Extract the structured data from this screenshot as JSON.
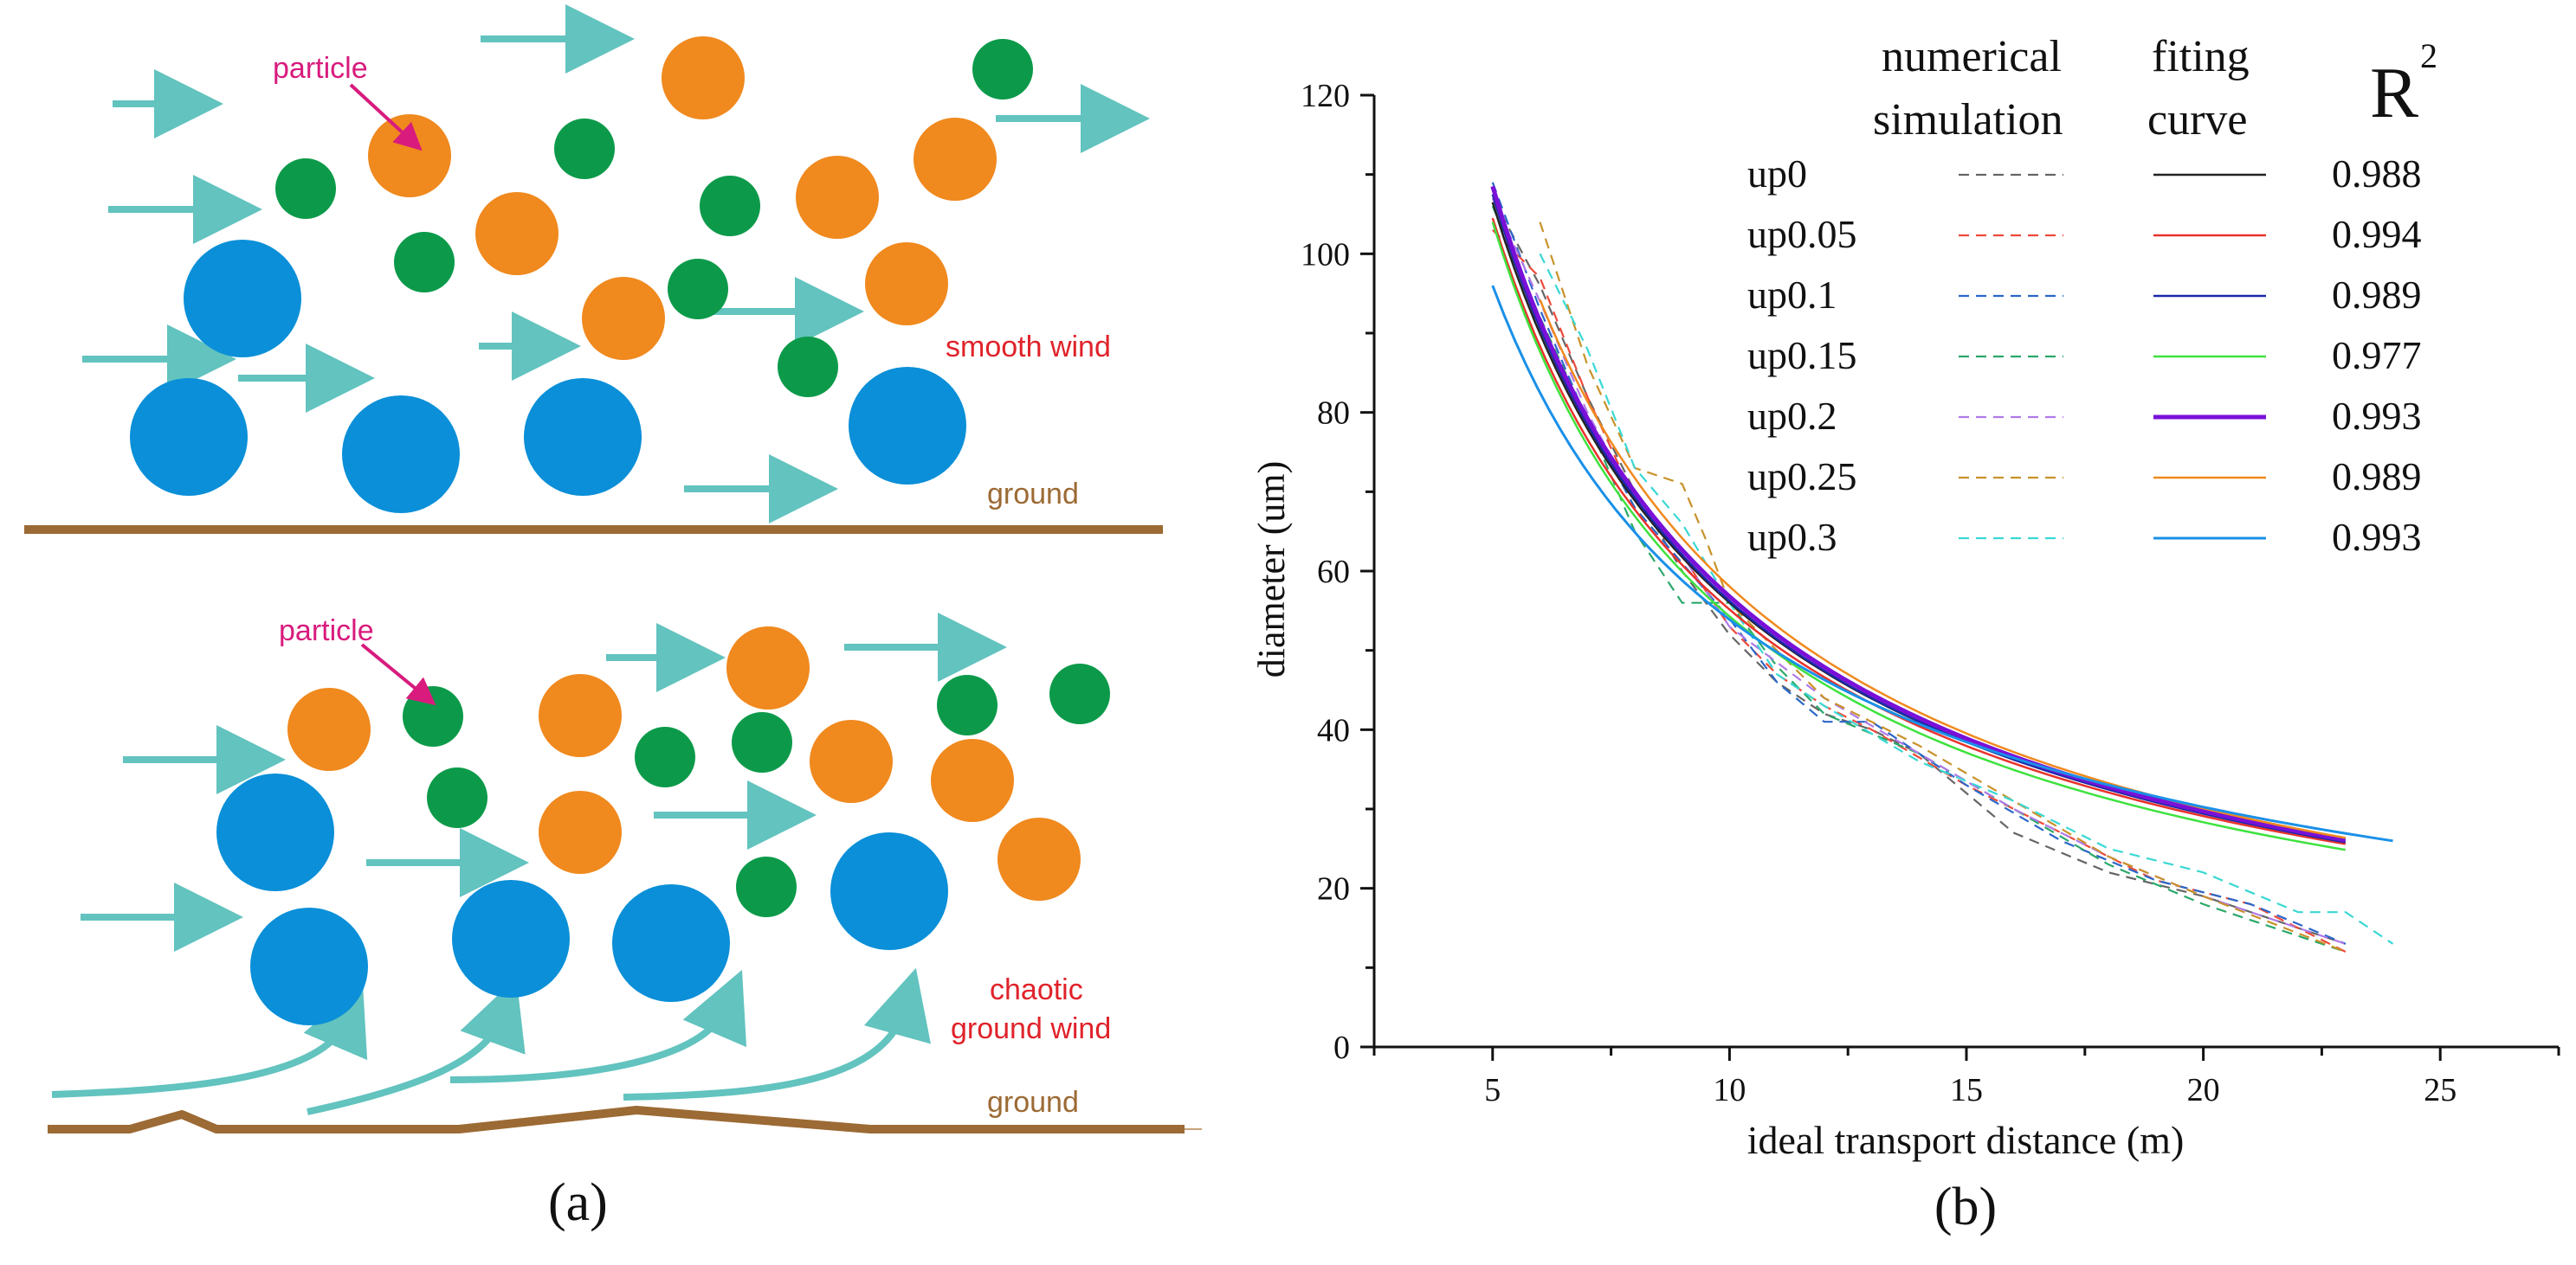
{
  "panel_a": {
    "caption": "(a)",
    "top": {
      "particle_label": "particle",
      "wind_label": "smooth wind",
      "ground_label": "ground"
    },
    "bottom": {
      "particle_label": "particle",
      "wind_label_line1": "chaotic",
      "wind_label_line2": "ground wind",
      "ground_label": "ground"
    },
    "colors": {
      "large_particle": "#0a8fd8",
      "medium_particle": "#f0891e",
      "small_particle": "#0c9a4a",
      "wind_arrow": "#62c3bf",
      "ground": "#9c6a34",
      "particle_label": "#d81b7d",
      "wind_label": "#e0222a",
      "ground_label": "#9c6a34"
    }
  },
  "panel_b": {
    "caption": "(b)",
    "legend": {
      "header_numerical_1": "numerical",
      "header_numerical_2": "simulation",
      "header_fitting_1": "fiting",
      "header_fitting_2": "curve",
      "header_r2": "R",
      "header_r2_sup": "2"
    },
    "chart_data": {
      "type": "line",
      "title": "",
      "xlabel": "ideal transport distance (m)",
      "ylabel": "diameter (um)",
      "xlim": [
        2.5,
        27.5
      ],
      "ylim": [
        0,
        120
      ],
      "xticks": [
        5,
        10,
        15,
        20,
        25
      ],
      "yticks": [
        0,
        20,
        40,
        60,
        80,
        100,
        120
      ],
      "grid": false,
      "legend_position": "top-right",
      "series": [
        {
          "name": "up0",
          "r2": "0.988",
          "color": "#222222",
          "sim_color": "#666666",
          "fit_width": 2.5,
          "fit": {
            "a": 106.5,
            "b": -0.927,
            "x0": 5,
            "x1": 23
          },
          "simulation": [
            [
              5,
              107
            ],
            [
              6,
              96
            ],
            [
              7,
              82
            ],
            [
              8,
              70
            ],
            [
              9,
              60
            ],
            [
              10,
              52
            ],
            [
              11,
              46
            ],
            [
              12,
              42
            ],
            [
              13,
              40
            ],
            [
              14,
              37
            ],
            [
              16,
              27
            ],
            [
              18,
              22
            ],
            [
              20,
              19
            ],
            [
              23,
              13
            ]
          ]
        },
        {
          "name": "up0.05",
          "r2": "0.994",
          "color": "#e8322c",
          "sim_color": "#ee4a3a",
          "fit_width": 2.5,
          "fit": {
            "a": 104.5,
            "b": -0.922,
            "x0": 5,
            "x1": 23
          },
          "simulation": [
            [
              5,
              103
            ],
            [
              6,
              97
            ],
            [
              7,
              82
            ],
            [
              8,
              69
            ],
            [
              9,
              62
            ],
            [
              10,
              53
            ],
            [
              11,
              47
            ],
            [
              12,
              43
            ],
            [
              13,
              40
            ],
            [
              15,
              33
            ],
            [
              17,
              27
            ],
            [
              19,
              21
            ],
            [
              21,
              18
            ],
            [
              23,
              12
            ]
          ]
        },
        {
          "name": "up0.1",
          "r2": "0.989",
          "color": "#1c28a8",
          "sim_color": "#2a66c8",
          "fit_width": 2.5,
          "fit": {
            "a": 107.5,
            "b": -0.935,
            "x0": 5,
            "x1": 23
          },
          "simulation": [
            [
              5,
              109
            ],
            [
              6,
              93
            ],
            [
              7,
              79
            ],
            [
              8,
              68
            ],
            [
              9,
              61
            ],
            [
              10,
              54
            ],
            [
              11,
              46
            ],
            [
              12,
              41
            ],
            [
              13,
              41
            ],
            [
              15,
              33
            ],
            [
              17,
              26
            ],
            [
              19,
              21
            ],
            [
              21,
              18
            ],
            [
              23,
              13
            ]
          ]
        },
        {
          "name": "up0.15",
          "r2": "0.977",
          "color": "#3ee23e",
          "sim_color": "#2aa86a",
          "fit_width": 2.5,
          "fit": {
            "a": 104,
            "b": -0.938,
            "x0": 5,
            "x1": 23
          },
          "simulation": [
            [
              5,
              106
            ],
            [
              6,
              92
            ],
            [
              7,
              79
            ],
            [
              8,
              65
            ],
            [
              9,
              56
            ],
            [
              10,
              56
            ],
            [
              11,
              48
            ],
            [
              12,
              42
            ],
            [
              14,
              37
            ],
            [
              16,
              30
            ],
            [
              18,
              23
            ],
            [
              20,
              18
            ],
            [
              23,
              12
            ]
          ]
        },
        {
          "name": "up0.2",
          "r2": "0.993",
          "color": "#7a10d8",
          "sim_color": "#b07ae8",
          "fit_width": 5,
          "fit": {
            "a": 108.5,
            "b": -0.934,
            "x0": 5,
            "x1": 23
          },
          "simulation": [
            [
              5,
              107
            ],
            [
              6,
              94
            ],
            [
              7,
              80
            ],
            [
              8,
              69
            ],
            [
              9,
              62
            ],
            [
              10,
              53
            ],
            [
              12,
              44
            ],
            [
              14,
              37
            ],
            [
              16,
              30
            ],
            [
              18,
              24
            ],
            [
              20,
              19
            ],
            [
              23,
              13
            ]
          ]
        },
        {
          "name": "up0.25",
          "r2": "0.989",
          "color": "#f0891e",
          "sim_color": "#c8922a",
          "fit_width": 2.5,
          "fit": {
            "a": 112,
            "b": -0.948,
            "x0": 6,
            "x1": 23
          },
          "simulation": [
            [
              6,
              104
            ],
            [
              7,
              86
            ],
            [
              8,
              73
            ],
            [
              9,
              71
            ],
            [
              9.5,
              64
            ],
            [
              10,
              56
            ],
            [
              12,
              44
            ],
            [
              14,
              38
            ],
            [
              16,
              31
            ],
            [
              18,
              24
            ],
            [
              20,
              19
            ],
            [
              23,
              12
            ]
          ]
        },
        {
          "name": "up0.3",
          "r2": "0.993",
          "color": "#1a90e8",
          "sim_color": "#3ad8d4",
          "fit_width": 3,
          "fit": {
            "a": 96,
            "b": -0.833,
            "x0": 5,
            "x1": 24
          },
          "simulation": [
            [
              6,
              100
            ],
            [
              7,
              88
            ],
            [
              8,
              73
            ],
            [
              9,
              66
            ],
            [
              10,
              56
            ],
            [
              11,
              47
            ],
            [
              12,
              43
            ],
            [
              14,
              36
            ],
            [
              16,
              31
            ],
            [
              18,
              25
            ],
            [
              20,
              22
            ],
            [
              22,
              17
            ],
            [
              23,
              17
            ],
            [
              24,
              13
            ]
          ]
        }
      ]
    }
  }
}
